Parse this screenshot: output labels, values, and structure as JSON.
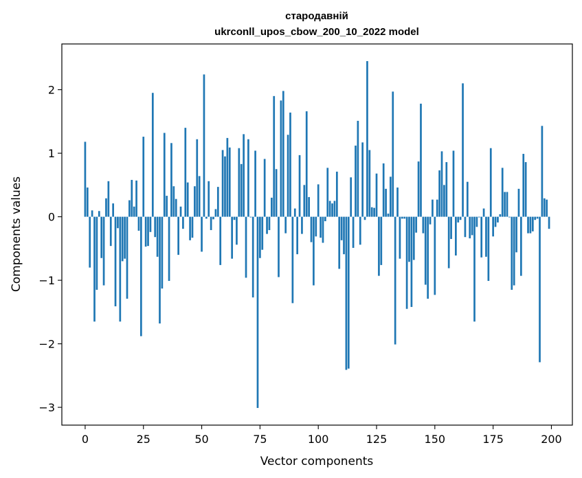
{
  "chart_data": {
    "type": "bar",
    "title_line1": "стародавній",
    "title_line2": "ukrconll_upos_cbow_200_10_2022 model",
    "xlabel": "Vector components",
    "ylabel": "Components values",
    "xlim": [
      -10,
      209
    ],
    "ylim": [
      -3.28,
      2.72
    ],
    "xticks": [
      0,
      25,
      50,
      75,
      100,
      125,
      150,
      175,
      200
    ],
    "yticks": [
      -3,
      -2,
      -1,
      0,
      1,
      2
    ],
    "ytick_labels": [
      "−3",
      "−2",
      "−1",
      "0",
      "1",
      "2"
    ],
    "bar_color": "#1f77b4",
    "grid": false,
    "x": [
      0,
      1,
      2,
      3,
      4,
      5,
      6,
      7,
      8,
      9,
      10,
      11,
      12,
      13,
      14,
      15,
      16,
      17,
      18,
      19,
      20,
      21,
      22,
      23,
      24,
      25,
      26,
      27,
      28,
      29,
      30,
      31,
      32,
      33,
      34,
      35,
      36,
      37,
      38,
      39,
      40,
      41,
      42,
      43,
      44,
      45,
      46,
      47,
      48,
      49,
      50,
      51,
      52,
      53,
      54,
      55,
      56,
      57,
      58,
      59,
      60,
      61,
      62,
      63,
      64,
      65,
      66,
      67,
      68,
      69,
      70,
      71,
      72,
      73,
      74,
      75,
      76,
      77,
      78,
      79,
      80,
      81,
      82,
      83,
      84,
      85,
      86,
      87,
      88,
      89,
      90,
      91,
      92,
      93,
      94,
      95,
      96,
      97,
      98,
      99,
      100,
      101,
      102,
      103,
      104,
      105,
      106,
      107,
      108,
      109,
      110,
      111,
      112,
      113,
      114,
      115,
      116,
      117,
      118,
      119,
      120,
      121,
      122,
      123,
      124,
      125,
      126,
      127,
      128,
      129,
      130,
      131,
      132,
      133,
      134,
      135,
      136,
      137,
      138,
      139,
      140,
      141,
      142,
      143,
      144,
      145,
      146,
      147,
      148,
      149,
      150,
      151,
      152,
      153,
      154,
      155,
      156,
      157,
      158,
      159,
      160,
      161,
      162,
      163,
      164,
      165,
      166,
      167,
      168,
      169,
      170,
      171,
      172,
      173,
      174,
      175,
      176,
      177,
      178,
      179,
      180,
      181,
      182,
      183,
      184,
      185,
      186,
      187,
      188,
      189,
      190,
      191,
      192,
      193,
      194,
      195,
      196,
      197,
      198,
      199
    ],
    "values": [
      1.18,
      0.46,
      -0.8,
      0.1,
      -1.65,
      -1.15,
      0.09,
      -0.65,
      -1.08,
      0.29,
      0.56,
      -0.46,
      0.21,
      -1.41,
      -0.18,
      -1.65,
      -0.7,
      -0.66,
      -1.29,
      0.26,
      0.58,
      0.16,
      0.57,
      -0.22,
      -1.88,
      1.26,
      -0.47,
      -0.46,
      -0.24,
      1.95,
      -0.32,
      -0.63,
      -1.68,
      -1.13,
      1.32,
      0.33,
      -1.01,
      1.16,
      0.48,
      0.28,
      -0.6,
      0.16,
      -0.19,
      1.4,
      0.54,
      -0.37,
      -0.33,
      0.48,
      1.22,
      0.64,
      -0.55,
      2.24,
      -0.03,
      0.56,
      -0.21,
      -0.04,
      0.12,
      0.47,
      -0.76,
      1.05,
      0.95,
      1.24,
      1.09,
      -0.66,
      -0.05,
      -0.44,
      1.08,
      0.83,
      1.3,
      -0.96,
      1.22,
      -0.01,
      -1.27,
      1.04,
      -3.01,
      -0.65,
      -0.52,
      0.91,
      -0.27,
      -0.21,
      0.3,
      1.9,
      0.75,
      -0.95,
      1.83,
      1.98,
      -0.26,
      1.29,
      1.64,
      -1.36,
      0.13,
      -0.59,
      0.97,
      -0.27,
      0.5,
      1.66,
      0.31,
      -0.4,
      -1.08,
      -0.31,
      0.51,
      -0.33,
      -0.41,
      -0.07,
      0.77,
      0.25,
      0.21,
      0.25,
      0.71,
      -0.82,
      -0.37,
      -0.59,
      -2.41,
      -2.39,
      0.62,
      -0.49,
      1.12,
      1.51,
      -0.44,
      1.17,
      -0.05,
      2.45,
      1.05,
      0.15,
      0.14,
      0.68,
      -0.93,
      -0.76,
      0.84,
      0.44,
      0.05,
      0.63,
      1.97,
      -2.01,
      0.46,
      -0.66,
      -0.03,
      -0.03,
      -1.45,
      -0.71,
      -1.42,
      -0.68,
      -0.25,
      0.87,
      1.78,
      -0.26,
      -1.07,
      -1.29,
      -0.12,
      0.27,
      -1.23,
      0.27,
      0.73,
      1.03,
      0.5,
      0.86,
      -0.81,
      -0.35,
      1.04,
      -0.61,
      -0.09,
      -0.05,
      2.1,
      -0.32,
      0.55,
      -0.34,
      -0.29,
      -1.65,
      -0.16,
      -0.01,
      -0.64,
      0.13,
      -0.63,
      -1.01,
      1.08,
      -0.31,
      -0.16,
      -0.09,
      0.04,
      0.77,
      0.39,
      0.39,
      -0.01,
      -1.15,
      -1.08,
      -0.56,
      0.44,
      -0.93,
      0.99,
      0.86,
      -0.26,
      -0.26,
      -0.23,
      -0.05,
      -0.03,
      -2.29,
      1.43,
      0.29,
      0.27,
      -0.19
    ]
  }
}
